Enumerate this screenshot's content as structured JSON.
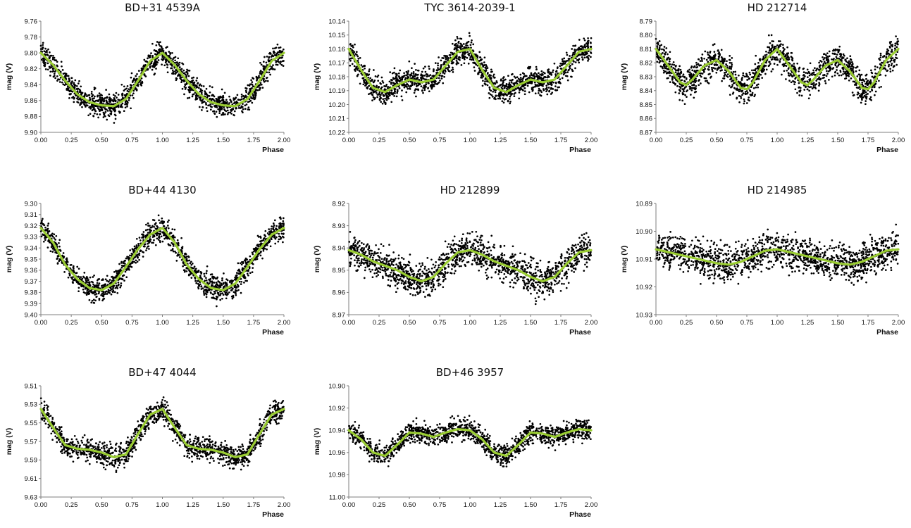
{
  "chart_data": [
    {
      "type": "scatter",
      "title": "BD+31 4539A",
      "xlabel": "Phase",
      "ylabel": "mag (V)",
      "xlim": [
        0,
        2
      ],
      "ylim": [
        9.76,
        9.9
      ],
      "y_inverted": true,
      "xticks": [
        "0.00",
        "0.25",
        "0.50",
        "0.75",
        "1.00",
        "1.25",
        "1.50",
        "1.75",
        "2.00"
      ],
      "yticks": [
        "9.76",
        "9.78",
        "9.80",
        "9.82",
        "9.84",
        "9.86",
        "9.88",
        "9.90"
      ],
      "fit_curve": {
        "x": [
          0,
          0.1,
          0.2,
          0.3,
          0.4,
          0.5,
          0.6,
          0.7,
          0.8,
          0.9,
          1.0,
          1.1,
          1.2,
          1.3,
          1.4,
          1.5,
          1.6,
          1.7,
          1.8,
          1.9,
          2.0
        ],
        "y": [
          9.8,
          9.815,
          9.835,
          9.852,
          9.862,
          9.866,
          9.867,
          9.858,
          9.835,
          9.81,
          9.8,
          9.815,
          9.835,
          9.852,
          9.862,
          9.866,
          9.867,
          9.858,
          9.835,
          9.81,
          9.8
        ]
      },
      "scatter_spread": 0.01
    },
    {
      "type": "scatter",
      "title": "TYC 3614-2039-1",
      "xlabel": "Phase",
      "ylabel": "mag (V)",
      "xlim": [
        0,
        2
      ],
      "ylim": [
        10.14,
        10.22
      ],
      "y_inverted": true,
      "xticks": [
        "0.00",
        "0.25",
        "0.50",
        "0.75",
        "1.00",
        "1.25",
        "1.50",
        "1.75",
        "2.00"
      ],
      "yticks": [
        "10.14",
        "10.15",
        "10.16",
        "10.17",
        "10.18",
        "10.19",
        "10.20",
        "10.21",
        "10.22"
      ],
      "fit_curve": {
        "x": [
          0,
          0.1,
          0.2,
          0.3,
          0.4,
          0.5,
          0.6,
          0.7,
          0.8,
          0.9,
          1.0,
          1.1,
          1.2,
          1.3,
          1.4,
          1.5,
          1.6,
          1.7,
          1.8,
          1.9,
          2.0
        ],
        "y": [
          10.16,
          10.175,
          10.188,
          10.191,
          10.186,
          10.182,
          10.184,
          10.182,
          10.172,
          10.162,
          10.16,
          10.175,
          10.188,
          10.191,
          10.186,
          10.182,
          10.184,
          10.182,
          10.172,
          10.162,
          10.16
        ]
      },
      "scatter_spread": 0.006
    },
    {
      "type": "scatter",
      "title": "HD 212714",
      "xlabel": "Phase",
      "ylabel": "mag (V)",
      "xlim": [
        0,
        2
      ],
      "ylim": [
        8.79,
        8.87
      ],
      "y_inverted": true,
      "xticks": [
        "0.00",
        "0.25",
        "0.50",
        "0.75",
        "1.00",
        "1.25",
        "1.50",
        "1.75",
        "2.00"
      ],
      "yticks": [
        "8.79",
        "8.80",
        "8.81",
        "8.82",
        "8.83",
        "8.84",
        "8.85",
        "8.86",
        "8.87"
      ],
      "fit_curve": {
        "x": [
          0,
          0.1,
          0.2,
          0.25,
          0.3,
          0.4,
          0.5,
          0.6,
          0.7,
          0.75,
          0.8,
          0.9,
          1.0,
          1.1,
          1.2,
          1.25,
          1.3,
          1.4,
          1.5,
          1.6,
          1.7,
          1.75,
          1.8,
          1.9,
          2.0
        ],
        "y": [
          8.81,
          8.822,
          8.834,
          8.836,
          8.832,
          8.822,
          8.818,
          8.826,
          8.838,
          8.839,
          8.834,
          8.818,
          8.81,
          8.822,
          8.834,
          8.836,
          8.832,
          8.822,
          8.818,
          8.826,
          8.838,
          8.839,
          8.834,
          8.818,
          8.81
        ]
      },
      "scatter_spread": 0.007
    },
    {
      "type": "scatter",
      "title": "BD+44 4130",
      "xlabel": "Phase",
      "ylabel": "mag (V)",
      "xlim": [
        0,
        2
      ],
      "ylim": [
        9.3,
        9.4
      ],
      "y_inverted": true,
      "xticks": [
        "0.00",
        "0.25",
        "0.50",
        "0.75",
        "1.00",
        "1.25",
        "1.50",
        "1.75",
        "2.00"
      ],
      "yticks": [
        "9.30",
        "9.31",
        "9.32",
        "9.33",
        "9.34",
        "9.35",
        "9.36",
        "9.37",
        "9.38",
        "9.39",
        "9.40"
      ],
      "fit_curve": {
        "x": [
          0,
          0.1,
          0.2,
          0.3,
          0.4,
          0.5,
          0.6,
          0.7,
          0.8,
          0.9,
          1.0,
          1.1,
          1.2,
          1.3,
          1.4,
          1.5,
          1.6,
          1.7,
          1.8,
          1.9,
          2.0
        ],
        "y": [
          9.322,
          9.335,
          9.355,
          9.368,
          9.376,
          9.378,
          9.372,
          9.357,
          9.341,
          9.328,
          9.322,
          9.335,
          9.355,
          9.368,
          9.376,
          9.378,
          9.372,
          9.357,
          9.341,
          9.328,
          9.322
        ]
      },
      "scatter_spread": 0.007
    },
    {
      "type": "scatter",
      "title": "HD 212899",
      "xlabel": "Phase",
      "ylabel": "mag (V)",
      "xlim": [
        0,
        2
      ],
      "ylim": [
        8.92,
        8.97
      ],
      "y_inverted": true,
      "xticks": [
        "0.00",
        "0.25",
        "0.50",
        "0.75",
        "1.00",
        "1.25",
        "1.50",
        "1.75",
        "2.00"
      ],
      "yticks": [
        "8.92",
        "8.93",
        "8.94",
        "8.95",
        "8.96",
        "8.97"
      ],
      "fit_curve": {
        "x": [
          0,
          0.1,
          0.2,
          0.3,
          0.4,
          0.5,
          0.6,
          0.7,
          0.8,
          0.9,
          1.0,
          1.1,
          1.2,
          1.3,
          1.4,
          1.5,
          1.6,
          1.7,
          1.8,
          1.9,
          2.0
        ],
        "y": [
          8.941,
          8.943,
          8.946,
          8.948,
          8.95,
          8.953,
          8.955,
          8.953,
          8.947,
          8.942,
          8.941,
          8.943,
          8.946,
          8.948,
          8.95,
          8.953,
          8.955,
          8.953,
          8.947,
          8.942,
          8.941
        ]
      },
      "scatter_spread": 0.005
    },
    {
      "type": "scatter",
      "title": "HD 214985",
      "xlabel": "Phase",
      "ylabel": "mag (V)",
      "xlim": [
        0,
        2
      ],
      "ylim": [
        10.89,
        10.93
      ],
      "y_inverted": true,
      "xticks": [
        "0.00",
        "0.25",
        "0.50",
        "0.75",
        "1.00",
        "1.25",
        "1.50",
        "1.75",
        "2.00"
      ],
      "yticks": [
        "10.89",
        "10.90",
        "10.91",
        "10.92",
        "10.93"
      ],
      "fit_curve": {
        "x": [
          0,
          0.1,
          0.2,
          0.3,
          0.4,
          0.5,
          0.6,
          0.7,
          0.8,
          0.9,
          1.0,
          1.1,
          1.2,
          1.3,
          1.4,
          1.5,
          1.6,
          1.7,
          1.8,
          1.9,
          2.0
        ],
        "y": [
          10.9065,
          10.9075,
          10.9085,
          10.9095,
          10.9105,
          10.9115,
          10.912,
          10.911,
          10.909,
          10.907,
          10.9065,
          10.9075,
          10.9085,
          10.9095,
          10.9105,
          10.9115,
          10.912,
          10.911,
          10.909,
          10.907,
          10.9065
        ]
      },
      "scatter_spread": 0.004
    },
    {
      "type": "scatter",
      "title": "BD+47 4044",
      "xlabel": "Phase",
      "ylabel": "mag (V)",
      "xlim": [
        0,
        2
      ],
      "ylim": [
        9.51,
        9.63
      ],
      "y_inverted": true,
      "xticks": [
        "0.00",
        "0.25",
        "0.50",
        "0.75",
        "1.00",
        "1.25",
        "1.50",
        "1.75",
        "2.00"
      ],
      "yticks": [
        "9.51",
        "9.53",
        "9.55",
        "9.57",
        "9.59",
        "9.61",
        "9.63"
      ],
      "fit_curve": {
        "x": [
          0,
          0.1,
          0.2,
          0.3,
          0.4,
          0.5,
          0.6,
          0.7,
          0.8,
          0.9,
          1.0,
          1.1,
          1.2,
          1.3,
          1.4,
          1.5,
          1.6,
          1.7,
          1.8,
          1.9,
          2.0
        ],
        "y": [
          9.535,
          9.555,
          9.574,
          9.578,
          9.579,
          9.582,
          9.587,
          9.584,
          9.562,
          9.541,
          9.535,
          9.555,
          9.574,
          9.578,
          9.579,
          9.582,
          9.587,
          9.584,
          9.562,
          9.541,
          9.535
        ]
      },
      "scatter_spread": 0.008
    },
    {
      "type": "scatter",
      "title": "BD+46 3957",
      "xlabel": "Phase",
      "ylabel": "mag (V)",
      "xlim": [
        0,
        2
      ],
      "ylim": [
        10.9,
        11.0
      ],
      "y_inverted": true,
      "xticks": [
        "0.00",
        "0.25",
        "0.50",
        "0.75",
        "1.00",
        "1.25",
        "1.50",
        "1.75",
        "2.00"
      ],
      "yticks": [
        "10.90",
        "10.92",
        "10.94",
        "10.96",
        "10.98",
        "11.00"
      ],
      "fit_curve": {
        "x": [
          0,
          0.1,
          0.2,
          0.3,
          0.4,
          0.5,
          0.6,
          0.7,
          0.8,
          0.9,
          1.0,
          1.1,
          1.2,
          1.3,
          1.4,
          1.5,
          1.6,
          1.7,
          1.8,
          1.9,
          2.0
        ],
        "y": [
          10.94,
          10.948,
          10.96,
          10.963,
          10.953,
          10.942,
          10.943,
          10.946,
          10.942,
          10.939,
          10.94,
          10.948,
          10.96,
          10.963,
          10.953,
          10.942,
          10.943,
          10.946,
          10.942,
          10.939,
          10.94
        ]
      },
      "scatter_spread": 0.006
    }
  ],
  "colors": {
    "points": "#000000",
    "fit_curve": "#9acd32",
    "axes": "#7f7f7f"
  }
}
